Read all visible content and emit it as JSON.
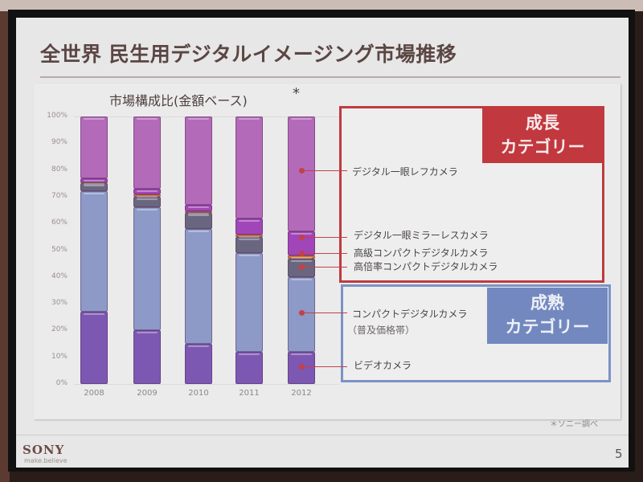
{
  "slide": {
    "title": "全世界 民生用デジタルイメージング市場推移",
    "source_note": "＊ソニー調べ",
    "brand": "SONY",
    "tagline": "make.believe",
    "page_number": "5"
  },
  "chart": {
    "title": "市場構成比(金額ベース)",
    "title_marker": "*",
    "y_ticks": [
      "100%",
      "90%",
      "80%",
      "70%",
      "60%",
      "50%",
      "40%",
      "30%",
      "20%",
      "10%",
      "0%"
    ],
    "x_labels": [
      "2008",
      "2009",
      "2010",
      "2011",
      "2012"
    ]
  },
  "legend": {
    "growth_category": {
      "line1": "成長",
      "line2": "カテゴリー"
    },
    "mature_category": {
      "line1": "成熟",
      "line2": "カテゴリー"
    },
    "items": {
      "dslr": "デジタル一眼レフカメラ",
      "mirrorless": "デジタル一眼ミラーレスカメラ",
      "premium_compact": "高級コンパクトデジタルカメラ",
      "high_zoom_compact": "高倍率コンパクトデジタルカメラ",
      "compact": "コンパクトデジタルカメラ",
      "compact_sub": "（普及価格帯）",
      "video": "ビデオカメラ"
    }
  },
  "colors": {
    "dslr": "#b36ab8",
    "mirrorless": "#a146b8",
    "premium_compact": "#d8783a",
    "high_zoom_compact": "#6b6680",
    "compact": "#8d9ac8",
    "video": "#7d58b2",
    "growth_accent": "#c2383f",
    "mature_accent": "#7288bf"
  },
  "chart_data": {
    "type": "bar",
    "stacked": true,
    "title": "市場構成比(金額ベース) *",
    "xlabel": "",
    "ylabel": "",
    "ylim": [
      0,
      100
    ],
    "y_unit": "%",
    "categories": [
      "2008",
      "2009",
      "2010",
      "2011",
      "2012"
    ],
    "series": [
      {
        "name": "ビデオカメラ",
        "group": "成熟カテゴリー",
        "values": [
          27,
          20,
          15,
          12,
          12
        ]
      },
      {
        "name": "コンパクトデジタルカメラ（普及価格帯）",
        "group": "成熟カテゴリー",
        "values": [
          45,
          46,
          43,
          37,
          28
        ]
      },
      {
        "name": "高倍率コンパクトデジタルカメラ",
        "group": "成長カテゴリー",
        "values": [
          3,
          4,
          6,
          6,
          7
        ]
      },
      {
        "name": "高級コンパクトデジタルカメラ",
        "group": "成長カテゴリー",
        "values": [
          0.5,
          1,
          0.5,
          1,
          1
        ]
      },
      {
        "name": "デジタル一眼ミラーレスカメラ",
        "group": "成長カテゴリー",
        "values": [
          1.5,
          2,
          2.5,
          6,
          9
        ]
      },
      {
        "name": "デジタル一眼レフカメラ",
        "group": "成長カテゴリー",
        "values": [
          23,
          27,
          33,
          38,
          43
        ]
      }
    ],
    "legend_position": "right",
    "grid": false,
    "source": "＊ソニー調べ"
  }
}
